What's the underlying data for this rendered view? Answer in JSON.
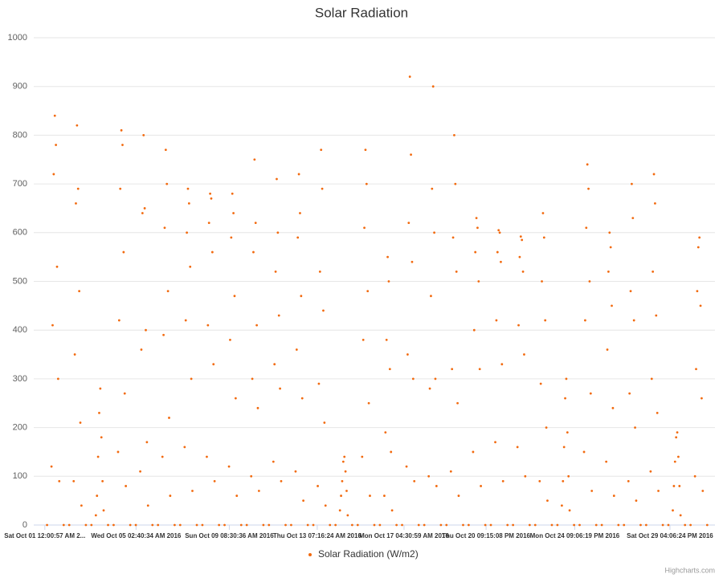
{
  "chart_data": {
    "type": "scatter",
    "title": "Solar Radiation",
    "credits": "Highcharts.com",
    "xlim": [
      -0.5,
      30.2
    ],
    "ylim": [
      0,
      1000
    ],
    "grid": true,
    "legend": "bottom",
    "yticks": [
      0,
      100,
      200,
      300,
      400,
      500,
      600,
      700,
      800,
      900,
      1000
    ],
    "xticks": [
      {
        "value": 0,
        "label": "Sat Oct 01 12:00:57 AM 2..."
      },
      {
        "value": 4.111,
        "label": "Wed Oct 05 02:40:34 AM 2016"
      },
      {
        "value": 8.313,
        "label": "Sun Oct 09 08:30:36 AM 2016"
      },
      {
        "value": 12.276,
        "label": "Thu Oct 13 07:16:24 AM 2016"
      },
      {
        "value": 16.188,
        "label": "Mon Oct 17 04:30:59 AM 2016"
      },
      {
        "value": 19.885,
        "label": "Thu Oct 20 09:15:08 PM 2016"
      },
      {
        "value": 23.881,
        "label": "Mon Oct 24 09:06:19 PM 2016"
      },
      {
        "value": 28.171,
        "label": "Sat Oct 29 04:06:24 PM 2016"
      }
    ],
    "x": [
      0.1,
      0.3,
      0.35,
      0.4,
      0.45,
      0.5,
      0.55,
      0.6,
      0.65,
      0.85,
      1.1,
      1.3,
      1.35,
      1.4,
      1.45,
      1.5,
      1.55,
      1.6,
      1.65,
      1.85,
      2.1,
      2.3,
      2.35,
      2.4,
      2.45,
      2.5,
      2.55,
      2.6,
      2.65,
      2.85,
      3.1,
      3.3,
      3.35,
      3.4,
      3.45,
      3.5,
      3.55,
      3.6,
      3.65,
      3.85,
      4.1,
      4.3,
      4.35,
      4.4,
      4.45,
      4.5,
      4.55,
      4.6,
      4.65,
      4.85,
      5.1,
      5.3,
      5.35,
      5.4,
      5.45,
      5.5,
      5.55,
      5.6,
      5.65,
      5.85,
      6.1,
      6.3,
      6.35,
      6.4,
      6.45,
      6.5,
      6.55,
      6.6,
      6.65,
      6.85,
      7.1,
      7.3,
      7.35,
      7.4,
      7.45,
      7.5,
      7.55,
      7.6,
      7.65,
      7.85,
      8.1,
      8.3,
      8.35,
      8.4,
      8.45,
      8.5,
      8.55,
      8.6,
      8.65,
      8.85,
      9.1,
      9.3,
      9.35,
      9.4,
      9.45,
      9.5,
      9.55,
      9.6,
      9.65,
      9.85,
      10.1,
      10.3,
      10.35,
      10.4,
      10.45,
      10.5,
      10.55,
      10.6,
      10.65,
      10.85,
      11.1,
      11.3,
      11.35,
      11.4,
      11.45,
      11.5,
      11.55,
      11.6,
      11.65,
      11.85,
      12.1,
      12.3,
      12.35,
      12.4,
      12.45,
      12.5,
      12.55,
      12.6,
      12.65,
      12.85,
      13.1,
      13.3,
      13.35,
      13.4,
      13.45,
      13.5,
      13.55,
      13.6,
      13.65,
      13.85,
      14.1,
      14.3,
      14.35,
      14.4,
      14.45,
      14.5,
      14.55,
      14.6,
      14.65,
      14.85,
      15.1,
      15.3,
      15.35,
      15.4,
      15.45,
      15.5,
      15.55,
      15.6,
      15.65,
      15.85,
      16.1,
      16.3,
      16.35,
      16.4,
      16.45,
      16.5,
      16.55,
      16.6,
      16.65,
      16.85,
      17.1,
      17.3,
      17.35,
      17.4,
      17.45,
      17.5,
      17.55,
      17.6,
      17.65,
      17.85,
      18.1,
      18.3,
      18.35,
      18.4,
      18.45,
      18.5,
      18.55,
      18.6,
      18.65,
      18.85,
      19.1,
      19.3,
      19.35,
      19.4,
      19.45,
      19.5,
      19.55,
      19.6,
      19.65,
      19.85,
      20.1,
      20.3,
      20.35,
      20.4,
      20.45,
      20.5,
      20.55,
      20.6,
      20.65,
      20.85,
      21.1,
      21.3,
      21.35,
      21.4,
      21.45,
      21.5,
      21.55,
      21.6,
      21.65,
      21.85,
      22.1,
      22.3,
      22.35,
      22.4,
      22.45,
      22.5,
      22.55,
      22.6,
      22.65,
      22.85,
      23.1,
      23.3,
      23.35,
      23.4,
      23.45,
      23.5,
      23.55,
      23.6,
      23.65,
      23.85,
      24.1,
      24.3,
      24.35,
      24.4,
      24.45,
      24.5,
      24.55,
      24.6,
      24.65,
      24.85,
      25.1,
      25.3,
      25.35,
      25.4,
      25.45,
      25.5,
      25.55,
      25.6,
      25.65,
      25.85,
      26.1,
      26.3,
      26.35,
      26.4,
      26.45,
      26.5,
      26.55,
      26.6,
      26.65,
      26.85,
      27.1,
      27.3,
      27.35,
      27.4,
      27.45,
      27.5,
      27.55,
      27.6,
      27.65,
      27.85,
      28.1,
      28.3,
      28.35,
      28.4,
      28.45,
      28.5,
      28.55,
      28.6,
      28.65,
      28.85,
      29.1,
      29.3,
      29.35,
      29.4,
      29.45,
      29.5,
      29.55,
      29.6,
      29.65,
      29.85
    ],
    "series": [
      {
        "name": "Solar Radiation (W/m2)",
        "color": "#f26a0f",
        "values": [
          0,
          120,
          410,
          720,
          840,
          780,
          530,
          300,
          90,
          0,
          0,
          90,
          350,
          660,
          820,
          690,
          480,
          210,
          40,
          0,
          0,
          20,
          60,
          140,
          230,
          280,
          180,
          90,
          30,
          0,
          0,
          150,
          420,
          690,
          810,
          780,
          560,
          270,
          80,
          0,
          0,
          110,
          360,
          640,
          800,
          650,
          400,
          170,
          40,
          0,
          0,
          140,
          390,
          610,
          770,
          700,
          480,
          220,
          60,
          0,
          0,
          160,
          420,
          600,
          690,
          660,
          530,
          300,
          70,
          0,
          0,
          140,
          410,
          620,
          680,
          670,
          560,
          330,
          90,
          0,
          0,
          120,
          380,
          590,
          680,
          640,
          470,
          260,
          60,
          0,
          0,
          100,
          300,
          560,
          750,
          620,
          410,
          240,
          70,
          0,
          0,
          130,
          330,
          520,
          710,
          600,
          430,
          280,
          90,
          0,
          0,
          110,
          360,
          590,
          720,
          640,
          470,
          260,
          50,
          0,
          0,
          80,
          290,
          520,
          770,
          690,
          440,
          210,
          40,
          0,
          0,
          30,
          60,
          90,
          130,
          140,
          110,
          70,
          20,
          0,
          0,
          140,
          380,
          610,
          770,
          700,
          480,
          250,
          60,
          0,
          0,
          60,
          190,
          380,
          550,
          500,
          320,
          150,
          30,
          0,
          0,
          120,
          350,
          620,
          920,
          760,
          540,
          300,
          90,
          0,
          0,
          100,
          280,
          470,
          690,
          900,
          600,
          300,
          80,
          0,
          0,
          110,
          320,
          590,
          800,
          700,
          520,
          250,
          60,
          0,
          0,
          150,
          400,
          560,
          630,
          610,
          500,
          320,
          80,
          0,
          0,
          170,
          420,
          560,
          605,
          600,
          540,
          330,
          90,
          0,
          0,
          160,
          410,
          550,
          592,
          585,
          520,
          350,
          100,
          0,
          0,
          90,
          290,
          500,
          640,
          590,
          420,
          200,
          50,
          0,
          0,
          40,
          90,
          160,
          260,
          300,
          190,
          100,
          30,
          0,
          0,
          150,
          420,
          610,
          740,
          690,
          500,
          270,
          70,
          0,
          0,
          130,
          360,
          520,
          600,
          570,
          450,
          240,
          60,
          0,
          0,
          90,
          270,
          480,
          700,
          630,
          420,
          200,
          50,
          0,
          0,
          110,
          300,
          520,
          720,
          660,
          430,
          230,
          70,
          0,
          0,
          30,
          80,
          130,
          180,
          190,
          140,
          80,
          20,
          0,
          0,
          100,
          320,
          480,
          570,
          590,
          450,
          260,
          70,
          0
        ]
      }
    ]
  }
}
